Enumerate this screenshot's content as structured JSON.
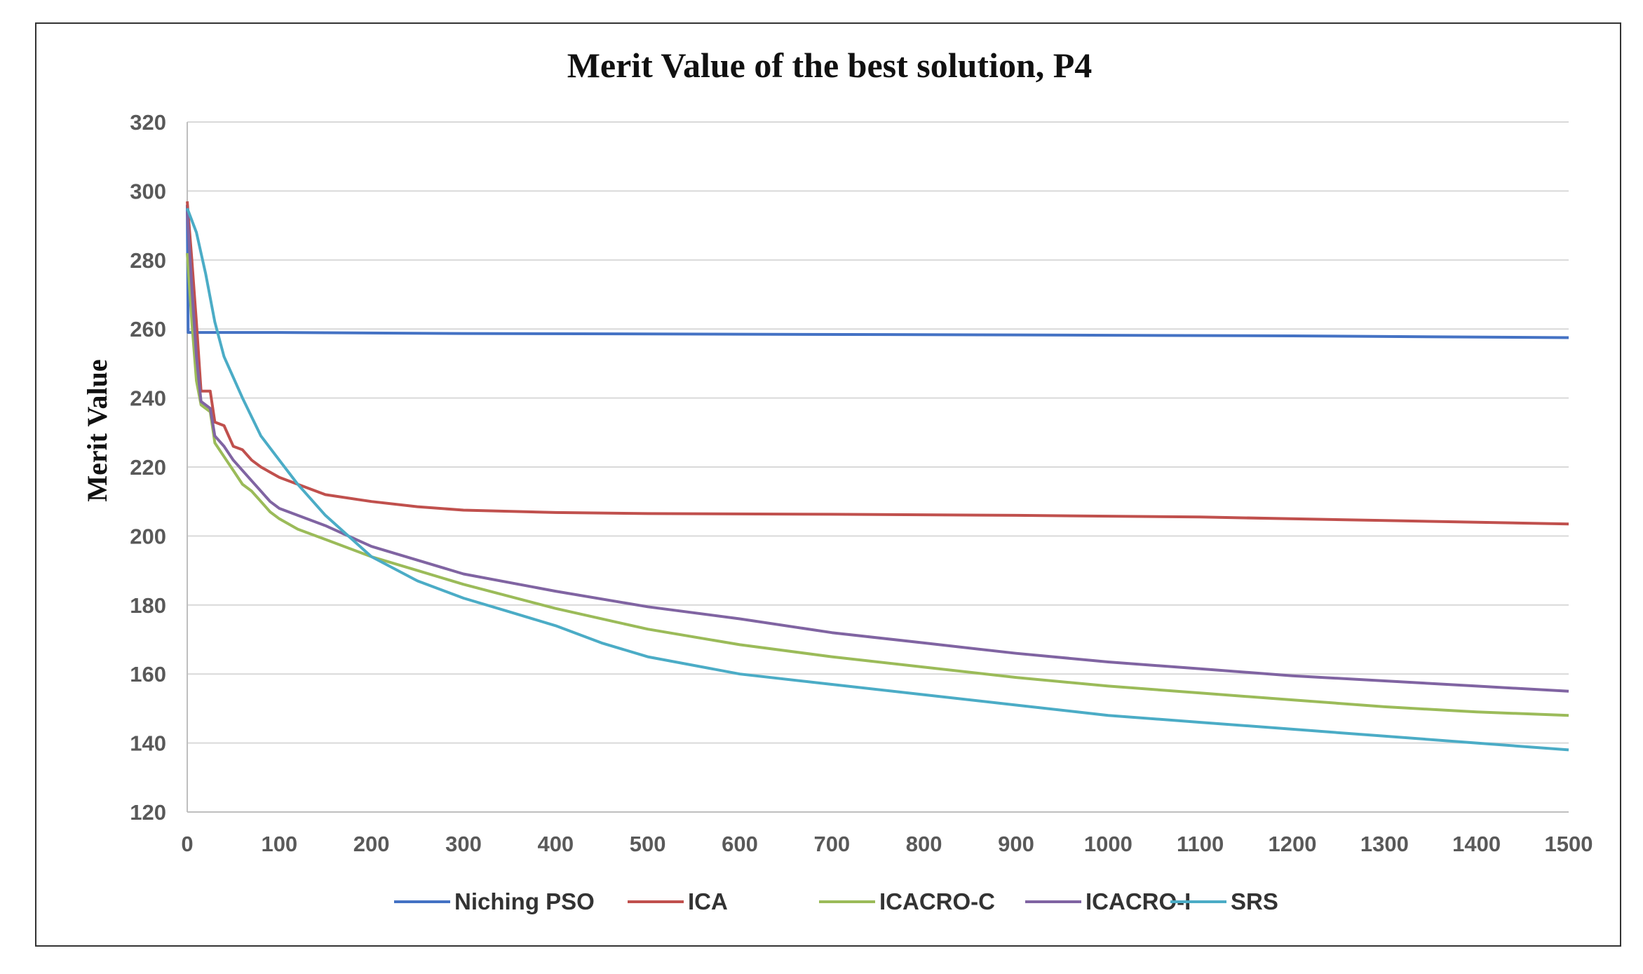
{
  "chart_data": {
    "type": "line",
    "title": "Merit Value of the best solution, P4",
    "xlabel": "",
    "ylabel": "Merit Value",
    "xlim": [
      0,
      1500
    ],
    "ylim": [
      120,
      320
    ],
    "x_ticks": [
      0,
      100,
      200,
      300,
      400,
      500,
      600,
      700,
      800,
      900,
      1000,
      1100,
      1200,
      1300,
      1400,
      1500
    ],
    "x_tick_labels": [
      "0",
      "100",
      "200",
      "300",
      "400",
      "500",
      "600",
      "700",
      "800",
      "900",
      "1000",
      "1100",
      "1200",
      "1300",
      "1400",
      "1500"
    ],
    "y_ticks": [
      120,
      140,
      160,
      180,
      200,
      220,
      240,
      260,
      280,
      300,
      320
    ],
    "y_tick_labels": [
      "120",
      "140",
      "160",
      "180",
      "200",
      "220",
      "240",
      "260",
      "280",
      "300",
      "320"
    ],
    "grid": true,
    "legend_position": "bottom",
    "series": [
      {
        "name": "Niching PSO",
        "color": "#4472C4",
        "points": [
          [
            0,
            296
          ],
          [
            1,
            259
          ],
          [
            100,
            259
          ],
          [
            300,
            258.7
          ],
          [
            600,
            258.5
          ],
          [
            900,
            258.3
          ],
          [
            1200,
            258
          ],
          [
            1500,
            257.5
          ]
        ]
      },
      {
        "name": "ICA",
        "color": "#C0504D",
        "points": [
          [
            0,
            297
          ],
          [
            5,
            280
          ],
          [
            10,
            262
          ],
          [
            15,
            242
          ],
          [
            25,
            242
          ],
          [
            30,
            233
          ],
          [
            40,
            232
          ],
          [
            50,
            226
          ],
          [
            60,
            225
          ],
          [
            70,
            222
          ],
          [
            80,
            220
          ],
          [
            100,
            217
          ],
          [
            120,
            215
          ],
          [
            150,
            212
          ],
          [
            200,
            210
          ],
          [
            250,
            208.5
          ],
          [
            300,
            207.5
          ],
          [
            400,
            206.8
          ],
          [
            500,
            206.5
          ],
          [
            700,
            206.3
          ],
          [
            900,
            206
          ],
          [
            1100,
            205.5
          ],
          [
            1300,
            204.5
          ],
          [
            1500,
            203.5
          ]
        ]
      },
      {
        "name": "ICACRO-C",
        "color": "#9BBB59",
        "points": [
          [
            0,
            282
          ],
          [
            5,
            262
          ],
          [
            10,
            245
          ],
          [
            15,
            238
          ],
          [
            25,
            236
          ],
          [
            30,
            227
          ],
          [
            40,
            223
          ],
          [
            50,
            219
          ],
          [
            60,
            215
          ],
          [
            70,
            213
          ],
          [
            80,
            210
          ],
          [
            90,
            207
          ],
          [
            100,
            205
          ],
          [
            120,
            202
          ],
          [
            150,
            199
          ],
          [
            200,
            194
          ],
          [
            250,
            190
          ],
          [
            300,
            186
          ],
          [
            400,
            179
          ],
          [
            500,
            173
          ],
          [
            600,
            168.5
          ],
          [
            700,
            165
          ],
          [
            800,
            162
          ],
          [
            900,
            159
          ],
          [
            1000,
            156.5
          ],
          [
            1100,
            154.5
          ],
          [
            1200,
            152.5
          ],
          [
            1300,
            150.5
          ],
          [
            1400,
            149
          ],
          [
            1500,
            148
          ]
        ]
      },
      {
        "name": "ICACRO-I",
        "color": "#8064A2",
        "points": [
          [
            0,
            294
          ],
          [
            5,
            272
          ],
          [
            10,
            252
          ],
          [
            15,
            239
          ],
          [
            25,
            237
          ],
          [
            30,
            229
          ],
          [
            40,
            226
          ],
          [
            50,
            222
          ],
          [
            60,
            219
          ],
          [
            70,
            216
          ],
          [
            80,
            213
          ],
          [
            90,
            210
          ],
          [
            100,
            208
          ],
          [
            120,
            206
          ],
          [
            150,
            203
          ],
          [
            200,
            197
          ],
          [
            250,
            193
          ],
          [
            300,
            189
          ],
          [
            400,
            184
          ],
          [
            500,
            179.5
          ],
          [
            600,
            176
          ],
          [
            700,
            172
          ],
          [
            800,
            169
          ],
          [
            900,
            166
          ],
          [
            1000,
            163.5
          ],
          [
            1100,
            161.5
          ],
          [
            1200,
            159.5
          ],
          [
            1300,
            158
          ],
          [
            1400,
            156.5
          ],
          [
            1500,
            155
          ]
        ]
      },
      {
        "name": "SRS",
        "color": "#4BACC6",
        "points": [
          [
            0,
            295
          ],
          [
            10,
            288
          ],
          [
            20,
            276
          ],
          [
            30,
            262
          ],
          [
            40,
            252
          ],
          [
            60,
            240
          ],
          [
            80,
            229
          ],
          [
            100,
            222
          ],
          [
            120,
            215
          ],
          [
            150,
            206
          ],
          [
            200,
            194
          ],
          [
            250,
            187
          ],
          [
            300,
            182
          ],
          [
            350,
            178
          ],
          [
            400,
            174
          ],
          [
            450,
            169
          ],
          [
            500,
            165
          ],
          [
            600,
            160
          ],
          [
            700,
            157
          ],
          [
            800,
            154
          ],
          [
            900,
            151
          ],
          [
            1000,
            148
          ],
          [
            1100,
            146
          ],
          [
            1200,
            144
          ],
          [
            1300,
            142
          ],
          [
            1400,
            140
          ],
          [
            1500,
            138
          ]
        ]
      }
    ]
  }
}
